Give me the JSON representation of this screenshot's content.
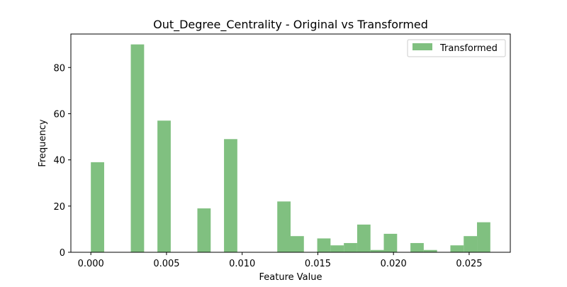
{
  "chart_data": {
    "type": "bar",
    "title": "Out_Degree_Centrality - Original vs Transformed",
    "xlabel": "Feature Value",
    "ylabel": "Frequency",
    "xlim": [
      -0.00132,
      0.02772
    ],
    "ylim": [
      0,
      94.5
    ],
    "grid": false,
    "legend_position": "top-right",
    "x_ticks": [
      {
        "value": 0.0,
        "label": "0.000"
      },
      {
        "value": 0.005,
        "label": "0.005"
      },
      {
        "value": 0.01,
        "label": "0.010"
      },
      {
        "value": 0.015,
        "label": "0.015"
      },
      {
        "value": 0.02,
        "label": "0.020"
      },
      {
        "value": 0.025,
        "label": "0.025"
      }
    ],
    "y_ticks": [
      {
        "value": 0,
        "label": "0"
      },
      {
        "value": 20,
        "label": "20"
      },
      {
        "value": 40,
        "label": "40"
      },
      {
        "value": 60,
        "label": "60"
      },
      {
        "value": 80,
        "label": "80"
      }
    ],
    "series": [
      {
        "name": "Transformed",
        "color": "#80c080",
        "bin_edges": [
          0.0,
          0.00088,
          0.00176,
          0.00264,
          0.00352,
          0.0044,
          0.00528,
          0.00616,
          0.00704,
          0.00792,
          0.0088,
          0.00968,
          0.01056,
          0.01144,
          0.01232,
          0.0132,
          0.01408,
          0.01496,
          0.01584,
          0.01672,
          0.0176,
          0.01848,
          0.01936,
          0.02024,
          0.02112,
          0.022,
          0.02288,
          0.02376,
          0.02464,
          0.02552,
          0.0264
        ],
        "counts": [
          39,
          0,
          0,
          90,
          0,
          57,
          0,
          0,
          19,
          0,
          49,
          0,
          0,
          0,
          22,
          7,
          0,
          6,
          3,
          4,
          12,
          1,
          8,
          0,
          4,
          1,
          0,
          3,
          7,
          13
        ]
      }
    ]
  }
}
